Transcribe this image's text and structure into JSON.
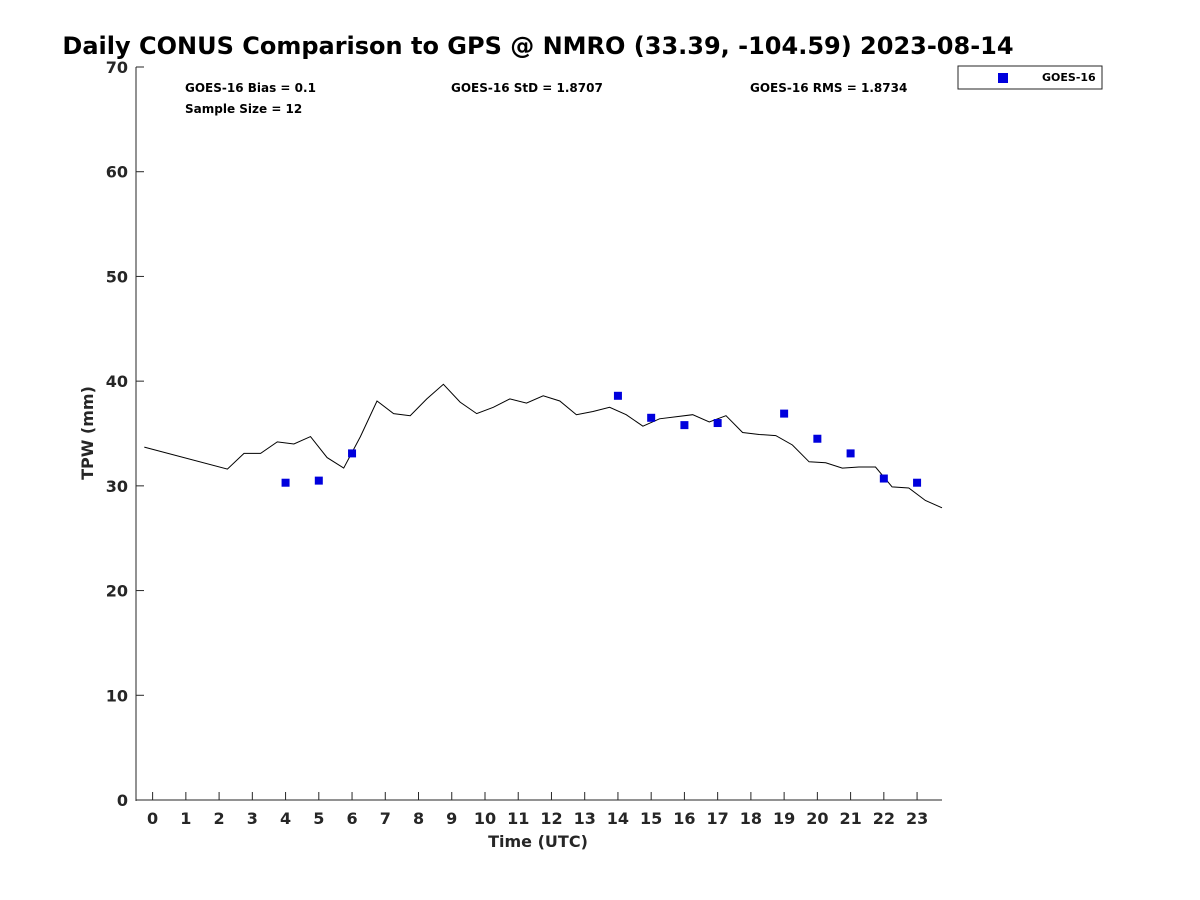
{
  "chart_data": {
    "type": "scatter",
    "title": "Daily CONUS Comparison to GPS @ NMRO (33.39, -104.59) 2023-08-14",
    "xlabel": "Time (UTC)",
    "ylabel": "TPW (mm)",
    "xlim": [
      -0.5,
      23.75
    ],
    "ylim": [
      0,
      70
    ],
    "x_ticks": [
      0,
      1,
      2,
      3,
      4,
      5,
      6,
      7,
      8,
      9,
      10,
      11,
      12,
      13,
      14,
      15,
      16,
      17,
      18,
      19,
      20,
      21,
      22,
      23
    ],
    "y_ticks": [
      0,
      10,
      20,
      30,
      40,
      50,
      60,
      70
    ],
    "grid": false,
    "legend_position": "top-right",
    "stats": {
      "bias": "GOES-16 Bias = 0.1",
      "sample_size": "Sample Size = 12",
      "std": "GOES-16 StD = 1.8707",
      "rms": "GOES-16 RMS = 1.8734"
    },
    "series": [
      {
        "name": "GOES-16",
        "kind": "scatter",
        "color": "#0000dd",
        "marker": "square",
        "x": [
          4,
          5,
          6,
          14,
          15,
          16,
          17,
          19,
          20,
          21,
          22,
          23
        ],
        "y": [
          30.3,
          30.5,
          33.1,
          38.6,
          36.5,
          35.8,
          36.0,
          36.9,
          34.5,
          33.1,
          30.7,
          30.3
        ]
      },
      {
        "kind": "line",
        "color": "#000000",
        "x": [
          -0.25,
          2.25,
          2.75,
          3.25,
          3.75,
          4.25,
          4.75,
          5.25,
          5.75,
          6.25,
          6.75,
          7.25,
          7.75,
          8.25,
          8.75,
          9.25,
          9.75,
          10.25,
          10.75,
          11.25,
          11.75,
          12.25,
          12.75,
          13.25,
          13.75,
          14.25,
          14.75,
          15.25,
          15.75,
          16.25,
          16.75,
          17.25,
          17.75,
          18.25,
          18.75,
          19.25,
          19.75,
          20.25,
          20.75,
          21.25,
          21.75,
          22.25,
          22.75,
          23.25,
          23.75
        ],
        "y": [
          33.7,
          31.6,
          33.1,
          33.1,
          34.2,
          34.0,
          34.7,
          32.7,
          31.7,
          34.7,
          38.1,
          36.9,
          36.7,
          38.3,
          39.7,
          38.0,
          36.9,
          37.5,
          38.3,
          37.9,
          38.6,
          38.1,
          36.8,
          37.1,
          37.5,
          36.8,
          35.7,
          36.4,
          36.6,
          36.8,
          36.1,
          36.7,
          35.1,
          34.9,
          34.8,
          33.9,
          32.3,
          32.2,
          31.7,
          31.8,
          31.8,
          29.9,
          29.8,
          28.6,
          27.9
        ]
      }
    ]
  }
}
